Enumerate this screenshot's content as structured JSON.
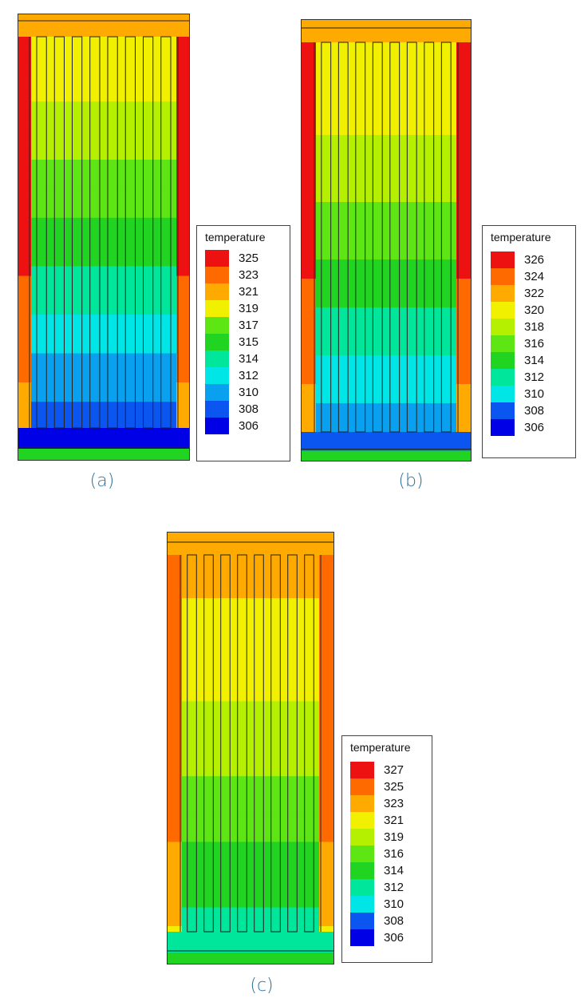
{
  "palette": [
    "#0000e6",
    "#0b55f0",
    "#0aa0f0",
    "#00e6e6",
    "#00e69a",
    "#22d422",
    "#5ee614",
    "#b4f000",
    "#f0f000",
    "#ffaa00",
    "#ff6a00",
    "#ee1111"
  ],
  "panels": [
    {
      "caption": "(a)",
      "legend_title": "temperature",
      "ticks": [
        "325",
        "323",
        "321",
        "319",
        "317",
        "315",
        "314",
        "312",
        "310",
        "308",
        "306"
      ],
      "color_stops": [
        0,
        1,
        2,
        3,
        5,
        6,
        7,
        8,
        9,
        10,
        11
      ]
    },
    {
      "caption": "(b)",
      "legend_title": "temperature",
      "ticks": [
        "326",
        "324",
        "322",
        "320",
        "318",
        "316",
        "314",
        "312",
        "310",
        "308",
        "306"
      ],
      "color_stops": [
        0,
        1,
        2,
        3,
        4,
        5,
        6,
        7,
        8,
        10,
        11
      ]
    },
    {
      "caption": "(c)",
      "legend_title": "temperature",
      "ticks": [
        "327",
        "325",
        "323",
        "321",
        "319",
        "316",
        "314",
        "312",
        "310",
        "308",
        "306"
      ],
      "color_stops": [
        0,
        1,
        2,
        3,
        4,
        5,
        6,
        7,
        8,
        10,
        11
      ]
    }
  ]
}
